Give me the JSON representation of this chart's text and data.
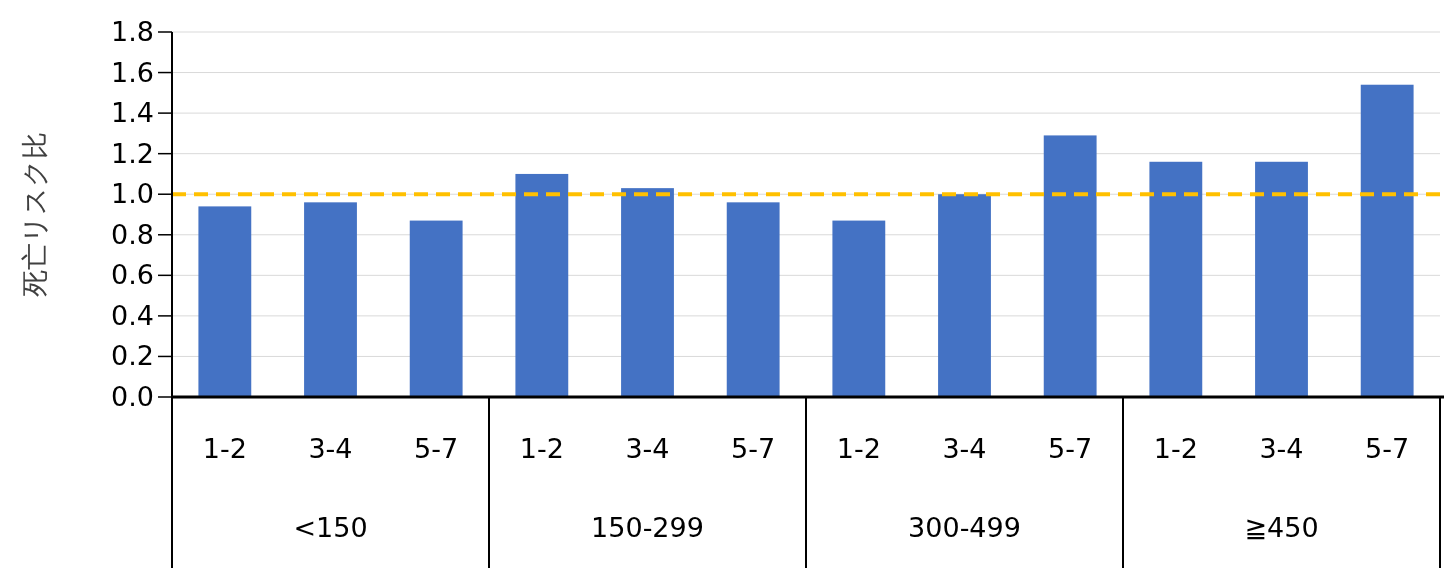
{
  "chart_data": {
    "type": "bar",
    "ylabel": "死亡リスク比",
    "categories": [
      "1-2",
      "3-4",
      "5-7",
      "1-2",
      "3-4",
      "5-7",
      "1-2",
      "3-4",
      "5-7",
      "1-2",
      "3-4",
      "5-7"
    ],
    "values": [
      0.94,
      0.96,
      0.87,
      1.1,
      1.03,
      0.96,
      0.87,
      1.0,
      1.29,
      1.16,
      1.16,
      1.54
    ],
    "color": "#4472c4",
    "ylim": [
      0,
      1.8
    ],
    "yticks": [
      {
        "value": 0,
        "label": "0.0"
      },
      {
        "value": 0.2,
        "label": "0.2"
      },
      {
        "value": 0.4,
        "label": "0.4"
      },
      {
        "value": 0.6,
        "label": "0.6"
      },
      {
        "value": 0.8,
        "label": "0.8"
      },
      {
        "value": 1,
        "label": "1.0"
      },
      {
        "value": 1.2,
        "label": "1.2"
      },
      {
        "value": 1.4,
        "label": "1.4"
      },
      {
        "value": 1.6,
        "label": "1.6"
      },
      {
        "value": 1.8,
        "label": "1.8"
      }
    ],
    "grid": "y",
    "ref_lines": [
      {
        "axis": "y",
        "value": 1,
        "color": "#ffc000",
        "line_style": "dashed"
      }
    ],
    "annotations": [
      "<150",
      "150-299",
      "300-499",
      "≧450"
    ]
  }
}
